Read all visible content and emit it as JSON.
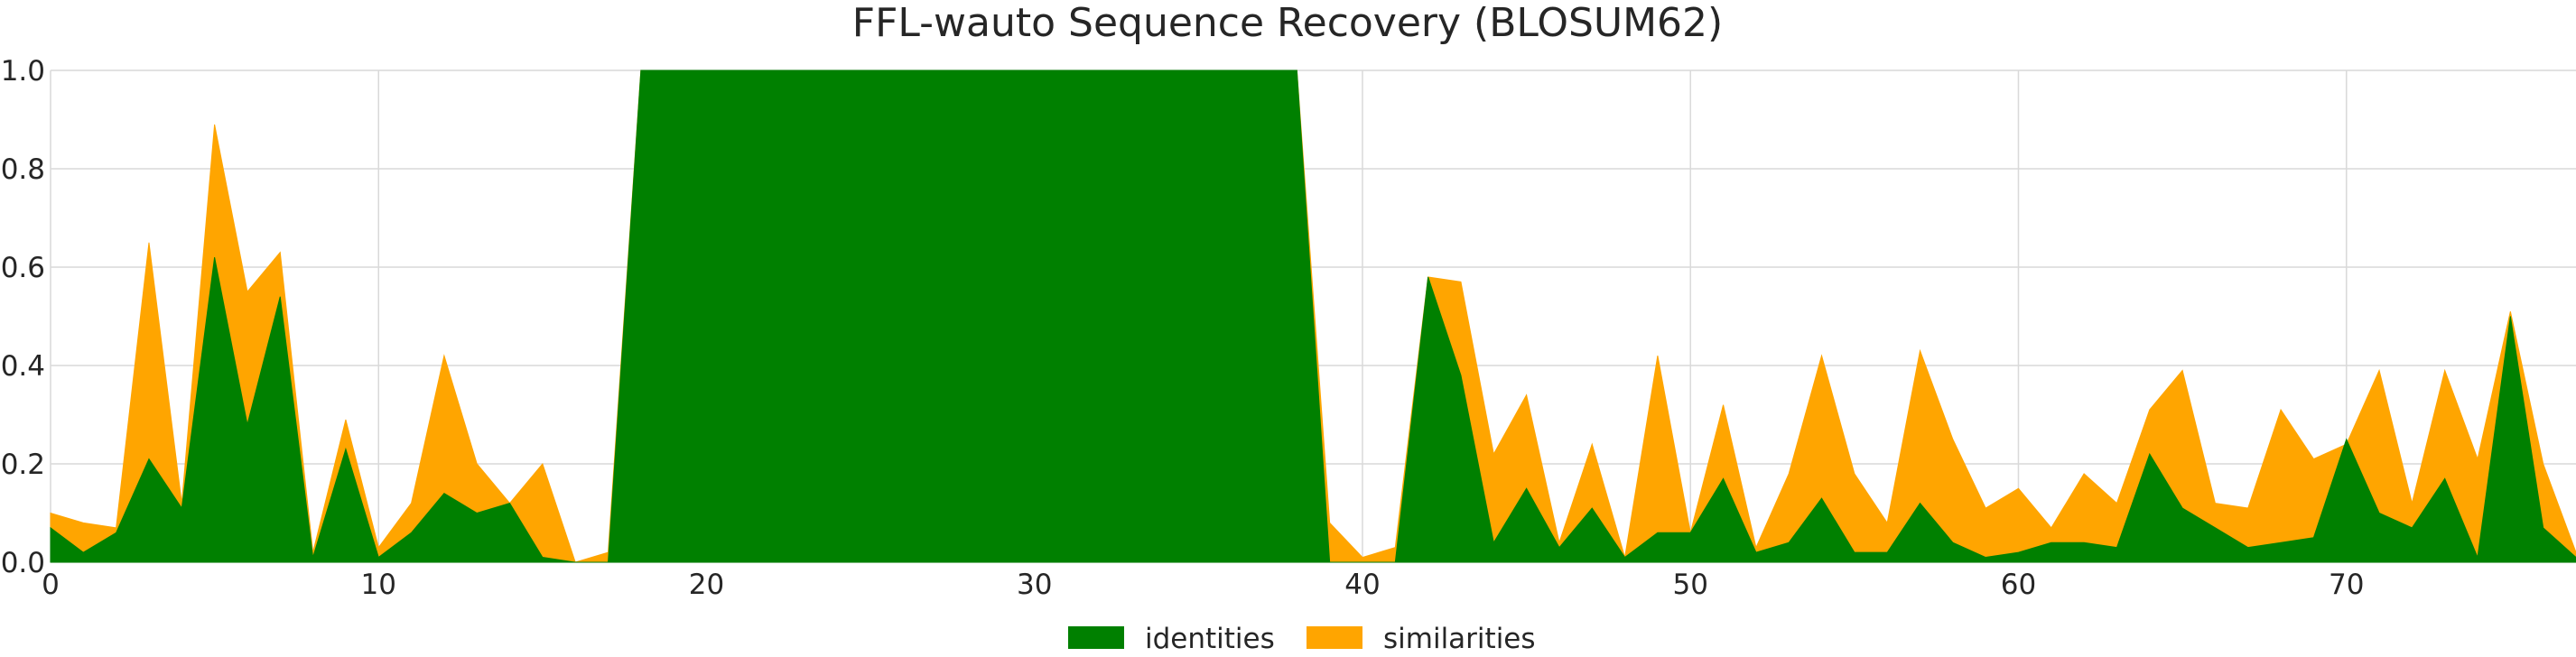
{
  "chart_data": {
    "type": "area",
    "title": "FFL-wauto Sequence Recovery (BLOSUM62)",
    "xlabel": "",
    "ylabel": "",
    "xlim": [
      0,
      77
    ],
    "ylim": [
      0,
      1.0
    ],
    "x_ticks": [
      0,
      10,
      20,
      30,
      40,
      50,
      60,
      70
    ],
    "x_tick_labels": [
      "0",
      "10",
      "20",
      "30",
      "40",
      "50",
      "60",
      "70"
    ],
    "y_ticks": [
      0,
      0.2,
      0.4,
      0.6,
      0.8,
      1.0
    ],
    "y_tick_labels": [
      "0.0",
      "0.2",
      "0.4",
      "0.6",
      "0.8",
      "1.0"
    ],
    "grid": true,
    "legend_position": "bottom-center",
    "x": [
      0,
      1,
      2,
      3,
      4,
      5,
      6,
      7,
      8,
      9,
      10,
      11,
      12,
      13,
      14,
      15,
      16,
      17,
      18,
      19,
      20,
      21,
      22,
      23,
      24,
      25,
      26,
      27,
      28,
      29,
      30,
      31,
      32,
      33,
      34,
      35,
      36,
      37,
      38,
      39,
      40,
      41,
      42,
      43,
      44,
      45,
      46,
      47,
      48,
      49,
      50,
      51,
      52,
      53,
      54,
      55,
      56,
      57,
      58,
      59,
      60,
      61,
      62,
      63,
      64,
      65,
      66,
      67,
      68,
      69,
      70,
      71,
      72,
      73,
      74,
      75,
      76,
      77
    ],
    "series": [
      {
        "name": "identities",
        "color": "#008000",
        "values": [
          0.07,
          0.02,
          0.06,
          0.21,
          0.11,
          0.62,
          0.28,
          0.54,
          0.01,
          0.23,
          0.01,
          0.06,
          0.14,
          0.1,
          0.12,
          0.01,
          0.0,
          0.0,
          1.0,
          1.0,
          1.0,
          1.0,
          1.0,
          1.0,
          1.0,
          1.0,
          1.0,
          1.0,
          1.0,
          1.0,
          1.0,
          1.0,
          1.0,
          1.0,
          1.0,
          1.0,
          1.0,
          1.0,
          1.0,
          0.0,
          0.0,
          0.0,
          0.58,
          0.38,
          0.04,
          0.15,
          0.03,
          0.11,
          0.01,
          0.06,
          0.06,
          0.17,
          0.02,
          0.04,
          0.13,
          0.02,
          0.02,
          0.12,
          0.04,
          0.01,
          0.02,
          0.04,
          0.04,
          0.03,
          0.22,
          0.11,
          0.07,
          0.03,
          0.04,
          0.05,
          0.25,
          0.1,
          0.07,
          0.17,
          0.01,
          0.5,
          0.07,
          0.01
        ]
      },
      {
        "name": "similarities",
        "color": "#FFA500",
        "values": [
          0.1,
          0.08,
          0.07,
          0.65,
          0.12,
          0.89,
          0.55,
          0.63,
          0.02,
          0.29,
          0.03,
          0.12,
          0.42,
          0.2,
          0.12,
          0.2,
          0.0,
          0.02,
          1.0,
          1.0,
          1.0,
          1.0,
          1.0,
          1.0,
          1.0,
          1.0,
          1.0,
          1.0,
          1.0,
          1.0,
          1.0,
          1.0,
          1.0,
          1.0,
          1.0,
          1.0,
          1.0,
          1.0,
          1.0,
          0.08,
          0.01,
          0.03,
          0.58,
          0.57,
          0.22,
          0.34,
          0.04,
          0.24,
          0.01,
          0.42,
          0.06,
          0.32,
          0.03,
          0.18,
          0.42,
          0.18,
          0.08,
          0.43,
          0.25,
          0.11,
          0.15,
          0.07,
          0.18,
          0.12,
          0.31,
          0.39,
          0.12,
          0.11,
          0.31,
          0.21,
          0.24,
          0.39,
          0.12,
          0.39,
          0.21,
          0.51,
          0.2,
          0.02
        ]
      }
    ]
  }
}
